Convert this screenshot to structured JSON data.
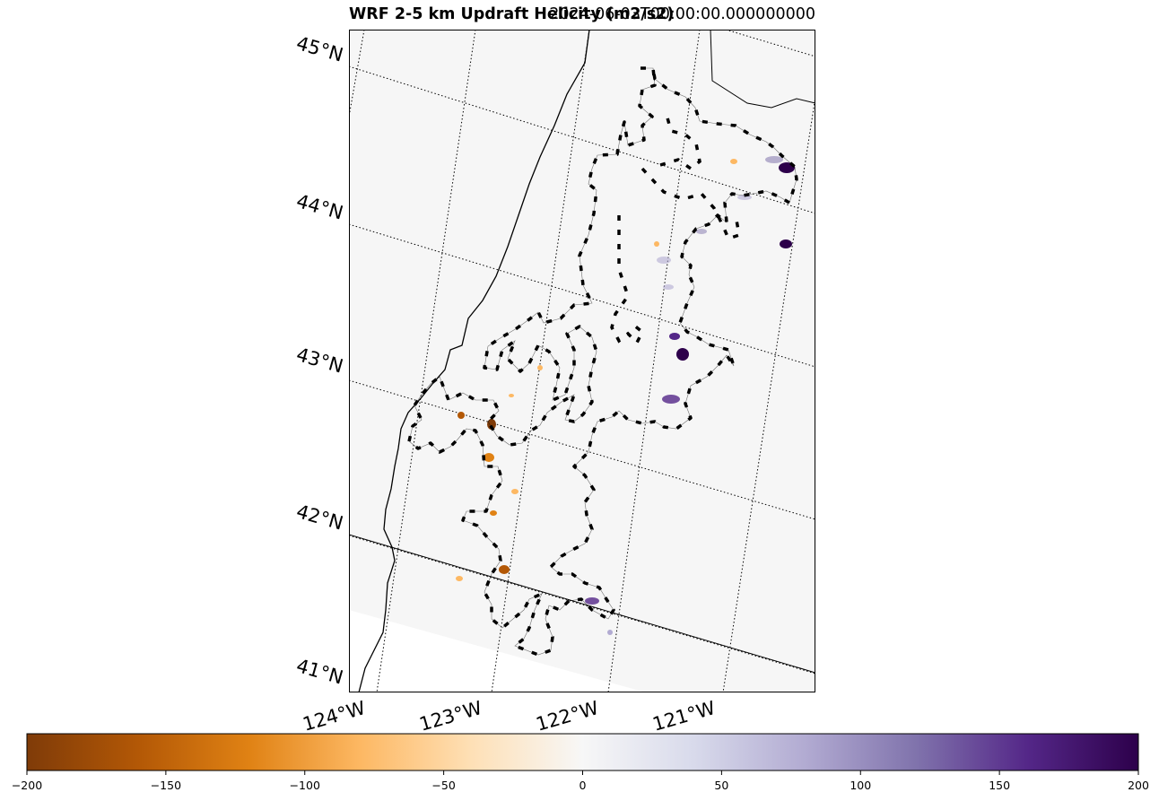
{
  "map": {
    "title": "WRF 2-5 km Updraft Helicity (m2/s2)",
    "time_label": "2024-06-03T00:00:00.000000000",
    "lat_labels": [
      "45°N",
      "44°N",
      "43°N",
      "42°N",
      "41°N"
    ],
    "lon_labels": [
      "124°W",
      "123°W",
      "122°W",
      "121°W"
    ],
    "background_color": "#f6f6f6",
    "coastline_color": "#000000",
    "graticule_style": "dotted"
  },
  "colorbar": {
    "min": -200,
    "max": 200,
    "tick_values": [
      -200,
      -150,
      -100,
      -50,
      0,
      50,
      100,
      150,
      200
    ],
    "tick_labels": [
      "−200",
      "−150",
      "−100",
      "−50",
      "0",
      "50",
      "100",
      "150",
      "200"
    ],
    "colormap": "PuOr",
    "colors": [
      "#7f3b08",
      "#b35806",
      "#e08214",
      "#fdb863",
      "#fee0b6",
      "#f7f7f7",
      "#d8daeb",
      "#b2abd2",
      "#8073ac",
      "#542788",
      "#2d004b"
    ]
  }
}
